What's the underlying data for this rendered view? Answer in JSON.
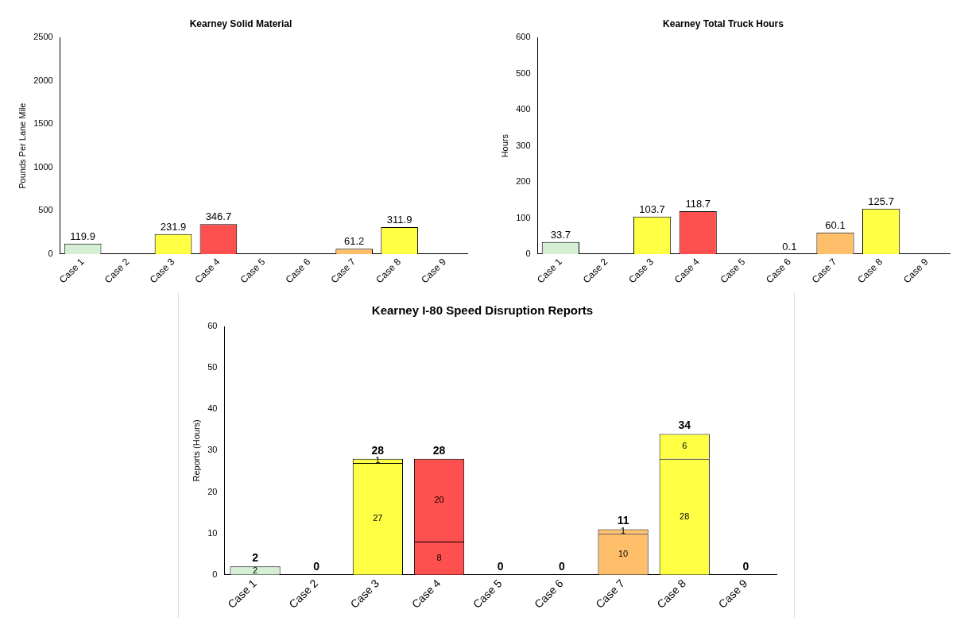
{
  "chart_data": [
    {
      "type": "bar",
      "title": "Kearney Solid Material",
      "ylabel": "Pounds Per Lane Mile",
      "categories": [
        "Case 1",
        "Case 2",
        "Case 3",
        "Case 4",
        "Case 5",
        "Case 6",
        "Case 7",
        "Case 8",
        "Case 9"
      ],
      "values": [
        119.9,
        null,
        231.9,
        346.7,
        null,
        null,
        61.2,
        311.9,
        null
      ],
      "colors": [
        "#d4efd4",
        null,
        "#ffff44",
        "#ff5050",
        null,
        null,
        "#ffbf6a",
        "#ffff44",
        null
      ],
      "ylim": [
        0,
        2500
      ],
      "yticks": [
        0,
        500,
        1000,
        1500,
        2000,
        2500
      ],
      "grid": false,
      "legend": false,
      "data_labels": true
    },
    {
      "type": "bar",
      "title": "Kearney Total Truck Hours",
      "ylabel": "Hours",
      "categories": [
        "Case 1",
        "Case 2",
        "Case 3",
        "Case 4",
        "Case 5",
        "Case 6",
        "Case 7",
        "Case 8",
        "Case 9"
      ],
      "values": [
        33.7,
        null,
        103.7,
        118.7,
        null,
        0.1,
        60.1,
        125.7,
        null
      ],
      "colors": [
        "#d4efd4",
        null,
        "#ffff44",
        "#ff5050",
        null,
        "#ffbf6a",
        "#ffbf6a",
        "#ffff44",
        null
      ],
      "ylim": [
        0,
        600
      ],
      "yticks": [
        0,
        100,
        200,
        300,
        400,
        500,
        600
      ],
      "grid": false,
      "legend": false,
      "data_labels": true
    },
    {
      "type": "bar",
      "title": "Kearney I-80 Speed Disruption Reports",
      "ylabel": "Reports (Hours)",
      "categories": [
        "Case 1",
        "Case 2",
        "Case 3",
        "Case 4",
        "Case 5",
        "Case 6",
        "Case 7",
        "Case 8",
        "Case 9"
      ],
      "stacked": true,
      "series": [
        {
          "colors": [
            "#d4efd4",
            "#d4efd4",
            "#ffff44",
            "#ff5050",
            "#d4efd4",
            "#d4efd4",
            "#ffbf6a",
            "#ffff44",
            "#d4efd4"
          ],
          "values": [
            2,
            0,
            27,
            8,
            0,
            0,
            10,
            28,
            0
          ],
          "value_labels": [
            "2",
            null,
            "27",
            "8",
            null,
            null,
            "10",
            "28",
            null
          ]
        },
        {
          "colors": [
            "#d4efd4",
            "#d4efd4",
            "#ffff44",
            "#ff5050",
            "#d4efd4",
            "#d4efd4",
            "#ffbf6a",
            "#ffff44",
            "#d4efd4"
          ],
          "values": [
            0,
            0,
            1,
            20,
            0,
            0,
            1,
            6,
            0
          ],
          "value_labels": [
            null,
            null,
            "1",
            "20",
            null,
            null,
            "1",
            "6",
            null
          ]
        }
      ],
      "totals": [
        "2",
        "0",
        "28",
        "28",
        "0",
        "0",
        "11",
        "34",
        "0"
      ],
      "ylim": [
        0,
        60
      ],
      "yticks": [
        0,
        10,
        20,
        30,
        40,
        50,
        60
      ],
      "grid": false,
      "legend": false
    }
  ]
}
